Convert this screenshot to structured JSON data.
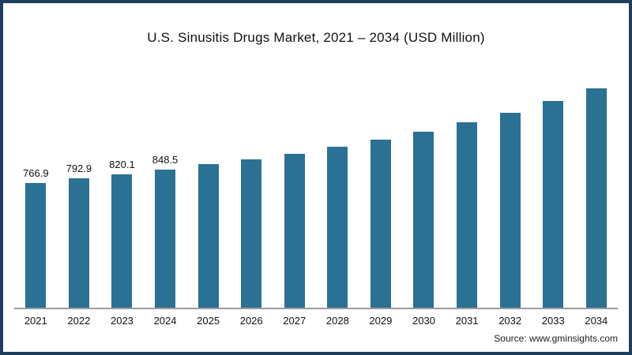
{
  "chart_data": {
    "type": "bar",
    "title": "U.S. Sinusitis Drugs Market, 2021 – 2034 (USD Million)",
    "categories": [
      "2021",
      "2022",
      "2023",
      "2024",
      "2025",
      "2026",
      "2027",
      "2028",
      "2029",
      "2030",
      "2031",
      "2032",
      "2033",
      "2034"
    ],
    "values": [
      766.9,
      792.9,
      820.1,
      848.5,
      880,
      912,
      945,
      985,
      1030,
      1080,
      1138,
      1196,
      1268,
      1345
    ],
    "data_labels": [
      "766.9",
      "792.9",
      "820.1",
      "848.5",
      "",
      "",
      "",
      "",
      "",
      "",
      "",
      "",
      "",
      ""
    ],
    "xlabel": "",
    "ylabel": "",
    "ylim": [
      0,
      1400
    ],
    "grid": false,
    "legend": false,
    "bar_color": "#2a7193"
  },
  "footer": {
    "source": "Source: www.gminsights.com"
  },
  "colors": {
    "frame": "#1c3f5f",
    "bar": "#2a7193",
    "axis": "#9c9c9c",
    "text": "#1a1a1a"
  }
}
